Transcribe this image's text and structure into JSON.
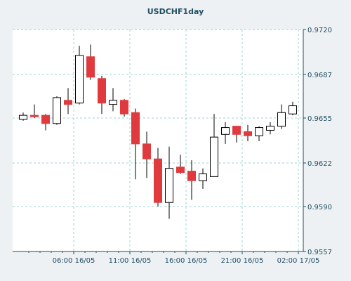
{
  "chart_data": {
    "type": "candlestick",
    "title": "USDCHF1day",
    "y_ticks": [
      "0.9720",
      "0.9687",
      "0.9655",
      "0.9622",
      "0.9590",
      "0.9557"
    ],
    "ylim": [
      0.9557,
      0.972
    ],
    "x_tick_labels": [
      "06:00 16/05",
      "11:00 16/05",
      "16:00 16/05",
      "21:00 16/05",
      "02:00 17/05"
    ],
    "x_tick_index": [
      4.5,
      9.5,
      14.5,
      19.5,
      24.5
    ],
    "colors": {
      "up": "#ffffff",
      "down": "#e03a3e",
      "wick": "#000000",
      "grid": "#9ed3d6",
      "axis": "#1f4d63"
    },
    "candles": [
      {
        "o": 0.9654,
        "h": 0.9659,
        "l": 0.9653,
        "c": 0.9657
      },
      {
        "o": 0.9657,
        "h": 0.9665,
        "l": 0.9655,
        "c": 0.9656
      },
      {
        "o": 0.9657,
        "h": 0.9658,
        "l": 0.9646,
        "c": 0.9651
      },
      {
        "o": 0.9651,
        "h": 0.9671,
        "l": 0.965,
        "c": 0.967
      },
      {
        "o": 0.9668,
        "h": 0.9677,
        "l": 0.9658,
        "c": 0.9665
      },
      {
        "o": 0.9666,
        "h": 0.9708,
        "l": 0.9665,
        "c": 0.9701
      },
      {
        "o": 0.97,
        "h": 0.9709,
        "l": 0.9683,
        "c": 0.9685
      },
      {
        "o": 0.9684,
        "h": 0.9686,
        "l": 0.9658,
        "c": 0.9666
      },
      {
        "o": 0.9665,
        "h": 0.9677,
        "l": 0.966,
        "c": 0.9668
      },
      {
        "o": 0.9668,
        "h": 0.9669,
        "l": 0.9656,
        "c": 0.9658
      },
      {
        "o": 0.9659,
        "h": 0.9662,
        "l": 0.961,
        "c": 0.9636
      },
      {
        "o": 0.9636,
        "h": 0.9645,
        "l": 0.9611,
        "c": 0.9625
      },
      {
        "o": 0.9625,
        "h": 0.9633,
        "l": 0.959,
        "c": 0.9593
      },
      {
        "o": 0.9593,
        "h": 0.9634,
        "l": 0.9581,
        "c": 0.9618
      },
      {
        "o": 0.9619,
        "h": 0.9628,
        "l": 0.9614,
        "c": 0.9615
      },
      {
        "o": 0.9616,
        "h": 0.9624,
        "l": 0.9595,
        "c": 0.9609
      },
      {
        "o": 0.9609,
        "h": 0.9618,
        "l": 0.9603,
        "c": 0.9614
      },
      {
        "o": 0.9612,
        "h": 0.9658,
        "l": 0.9612,
        "c": 0.9641
      },
      {
        "o": 0.9643,
        "h": 0.9652,
        "l": 0.9636,
        "c": 0.9648
      },
      {
        "o": 0.9649,
        "h": 0.9649,
        "l": 0.9637,
        "c": 0.9643
      },
      {
        "o": 0.9645,
        "h": 0.965,
        "l": 0.9638,
        "c": 0.9642
      },
      {
        "o": 0.9642,
        "h": 0.9649,
        "l": 0.9638,
        "c": 0.9648
      },
      {
        "o": 0.9646,
        "h": 0.9652,
        "l": 0.9643,
        "c": 0.9649
      },
      {
        "o": 0.9649,
        "h": 0.9665,
        "l": 0.9647,
        "c": 0.9659
      },
      {
        "o": 0.9658,
        "h": 0.9667,
        "l": 0.9657,
        "c": 0.9664
      }
    ]
  }
}
